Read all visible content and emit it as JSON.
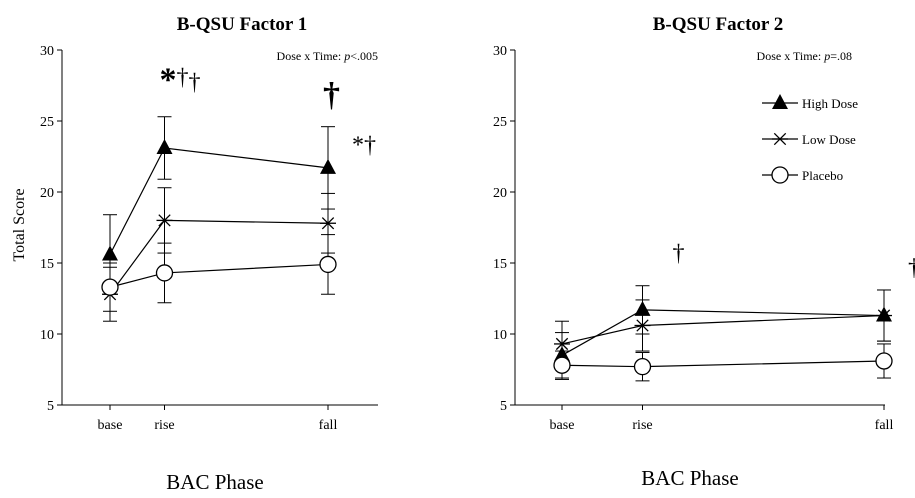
{
  "chart_data": [
    {
      "type": "line",
      "title": "B-QSU Factor 1",
      "annotation": "Dose x Time: p<.005",
      "annotation_prefix": "Dose x Time: ",
      "annotation_italic": "p",
      "annotation_suffix": "<.005",
      "xlabel": "BAC Phase",
      "ylabel": "Total Score",
      "categories": [
        "base",
        "rise",
        "fall"
      ],
      "x": [
        0,
        1,
        4
      ],
      "ylim": [
        5,
        30
      ],
      "yticks": [
        "5",
        "10",
        "15",
        "20",
        "25",
        "30"
      ],
      "series": [
        {
          "name": "High Dose",
          "marker": "triangle",
          "values": [
            15.6,
            23.1,
            21.7
          ],
          "errors": [
            2.8,
            2.2,
            2.9
          ]
        },
        {
          "name": "Low Dose",
          "marker": "star",
          "values": [
            12.8,
            18.0,
            17.8
          ],
          "errors": [
            1.9,
            2.3,
            2.1
          ]
        },
        {
          "name": "Placebo",
          "marker": "circle",
          "values": [
            13.3,
            14.3,
            14.9
          ],
          "errors": [
            1.7,
            2.1,
            2.1
          ]
        }
      ],
      "significance": [
        {
          "category": "rise",
          "text": "*†"
        },
        {
          "category": "rise",
          "text": "†"
        },
        {
          "category": "fall",
          "text": "*†"
        },
        {
          "category": "fall",
          "text": "†"
        }
      ]
    },
    {
      "type": "line",
      "title": "B-QSU Factor 2",
      "annotation": "Dose x Time: p=.08",
      "annotation_prefix": "Dose x Time: ",
      "annotation_italic": "p",
      "annotation_suffix": "=.08",
      "xlabel": "BAC Phase",
      "ylabel": "",
      "categories": [
        "base",
        "rise",
        "fall"
      ],
      "x": [
        0,
        1,
        4
      ],
      "ylim": [
        5,
        30
      ],
      "yticks": [
        "5",
        "10",
        "15",
        "20",
        "25",
        "30"
      ],
      "legend_position": "top-right",
      "series": [
        {
          "name": "High Dose",
          "marker": "triangle",
          "values": [
            8.5,
            11.7,
            11.3
          ],
          "errors": [
            1.6,
            1.7,
            1.8
          ]
        },
        {
          "name": "Low Dose",
          "marker": "star",
          "values": [
            9.3,
            10.6,
            11.3
          ],
          "errors": [
            1.6,
            1.8,
            1.8
          ]
        },
        {
          "name": "Placebo",
          "marker": "circle",
          "values": [
            7.8,
            7.7,
            8.1
          ],
          "errors": [
            1.0,
            1.0,
            1.2
          ]
        }
      ],
      "significance": [
        {
          "category": "rise",
          "text": "†"
        },
        {
          "category": "fall",
          "text": "†"
        }
      ]
    }
  ]
}
